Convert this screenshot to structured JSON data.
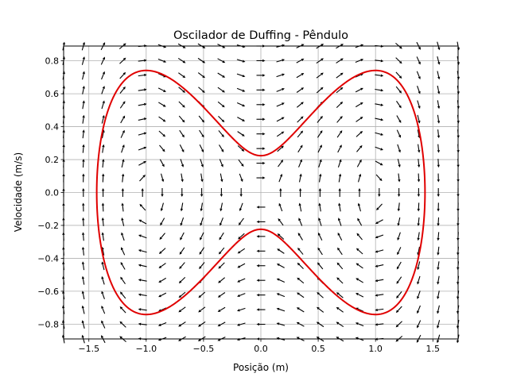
{
  "chart_data": {
    "type": "line",
    "title": "Oscilador de Duffing - Pêndulo",
    "xlabel": "Posição (m)",
    "ylabel": "Velocidade (m/s)",
    "xlim": [
      -1.72,
      1.72
    ],
    "ylim": [
      -0.89,
      0.89
    ],
    "grid": true,
    "x_ticks": [
      -1.5,
      -1.0,
      -0.5,
      0.0,
      0.5,
      1.0,
      1.5
    ],
    "x_tick_labels": [
      "−1.5",
      "−1.0",
      "−0.5",
      "0.0",
      "0.5",
      "1.0",
      "1.5"
    ],
    "y_ticks": [
      -0.8,
      -0.6,
      -0.4,
      -0.2,
      0.0,
      0.2,
      0.4,
      0.6,
      0.8
    ],
    "y_tick_labels": [
      "−0.8",
      "−0.6",
      "−0.4",
      "−0.2",
      "0.0",
      "0.2",
      "0.4",
      "0.6",
      "0.8"
    ],
    "vector_field": {
      "description": "direction field x' = v, v' = x - x^3",
      "nx": 21,
      "ny": 21,
      "x_range": [
        -1.72,
        1.72
      ],
      "y_range": [
        -0.89,
        0.89
      ],
      "color": "#000000"
    },
    "series": [
      {
        "trajectory_energy": 0.025,
        "color": "#e00000",
        "equation": "v^2/2 - x^2/2 + x^4/4 = E"
      }
    ]
  }
}
